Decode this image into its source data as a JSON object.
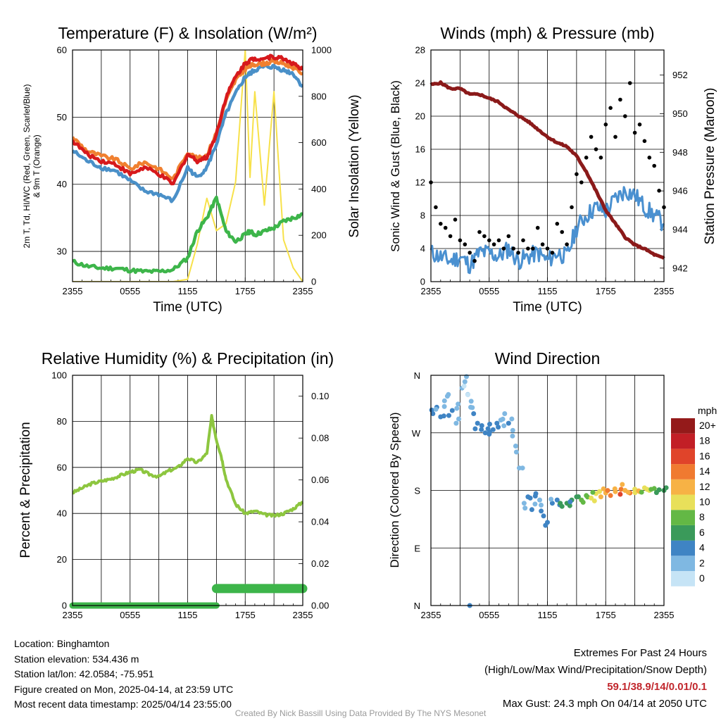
{
  "info": {
    "location": "Location: Binghamton",
    "elevation": "Station elevation: 534.436 m",
    "latlon": "Station lat/lon: 42.0584; -75.951",
    "created": "Figure created on Mon, 2025-04-14, at 23:59 UTC",
    "latest": "Most recent data timestamp: 2025/04/14 23:55:00"
  },
  "extremes": {
    "title": "Extremes For Past 24 Hours",
    "subtitle": "(High/Low/Max Wind/Precipitation/Snow Depth)",
    "values": "59.1/38.9/14/0.01/0.1",
    "max_gust": "Max Gust: 24.3 mph On 04/14 at 2050 UTC"
  },
  "credit": "Created By Nick Bassill Using Data Provided By The NYS Mesonet",
  "colors": {
    "temp": "#d7191c",
    "heat_index": "#e8a23a",
    "dewpoint": "#4a90c8",
    "temp9m": "#f08030",
    "solar": "#f7e14a",
    "wind": "#4a90d0",
    "gust": "#000000",
    "pressure": "#8b1a1a",
    "rh": "#8dc63f",
    "precip": "#3db54a"
  },
  "chart_data": [
    {
      "type": "line",
      "title": "Temperature (F) & Insolation (W/m²)",
      "xlabel": "Time (UTC)",
      "ylabel": [
        "2m T, Td, HI/WC (Red, Green, Scarlet/Blue)",
        "& 9m T (Orange)"
      ],
      "ylabel_right": "Solar Insolation (Yellow)",
      "x_ticks": [
        "2355",
        "0555",
        "1155",
        "1755",
        "2355"
      ],
      "x": [
        0,
        1.5,
        3,
        4.5,
        6,
        7.5,
        9,
        10.5,
        12,
        13,
        14,
        15,
        16,
        17,
        18,
        18.5,
        19,
        20,
        21,
        22,
        23,
        24
      ],
      "ylim": [
        25.5,
        60
      ],
      "yticks": [
        30,
        40,
        50,
        60
      ],
      "ylim_right": [
        0,
        1000
      ],
      "yticks_right": [
        0,
        200,
        400,
        600,
        800,
        1000
      ],
      "series": [
        {
          "name": "2m T",
          "axis": "left",
          "color": "temp",
          "values": [
            46.5,
            44.5,
            43.5,
            43,
            41.5,
            42.5,
            41.5,
            40,
            44.5,
            43.5,
            44,
            47.5,
            53,
            56,
            58,
            58.5,
            58.7,
            58.8,
            59,
            58.7,
            58,
            57
          ]
        },
        {
          "name": "9m T",
          "axis": "left",
          "color": "temp9m",
          "values": [
            47,
            45,
            44.2,
            43.7,
            42.3,
            43.3,
            42.3,
            40.8,
            44.8,
            43.8,
            44.3,
            47.7,
            52.5,
            55.5,
            57.2,
            57.6,
            57.9,
            58,
            58.3,
            58,
            57.4,
            56.5
          ]
        },
        {
          "name": "HI/WC",
          "axis": "left",
          "color": "dewpoint",
          "values": [
            45,
            43.5,
            42.5,
            42,
            40.5,
            39,
            38.5,
            37.5,
            42.5,
            41,
            42.5,
            46,
            50.5,
            53.5,
            56,
            56.5,
            57,
            57.5,
            57.5,
            57,
            56.5,
            54.5
          ]
        },
        {
          "name": "2m Td",
          "axis": "left",
          "color": "precip",
          "values": [
            28.5,
            27.8,
            27.5,
            27.5,
            27.2,
            27,
            27,
            27.3,
            29,
            33,
            35,
            38,
            33,
            31.5,
            32.5,
            33,
            32.5,
            33,
            33.5,
            34.5,
            35,
            35.5
          ]
        },
        {
          "name": "Solar",
          "axis": "right",
          "color": "solar",
          "values": [
            0,
            0,
            0,
            0,
            0,
            0,
            0,
            0,
            10,
            160,
            360,
            220,
            250,
            430,
            1000,
            450,
            820,
            330,
            820,
            180,
            60,
            0
          ]
        }
      ]
    },
    {
      "type": "line",
      "title": "Winds (mph) & Pressure (mb)",
      "xlabel": "Time (UTC)",
      "ylabel": "Sonic Wind & Gust (Blue, Black)",
      "ylabel_right": "Station Pressure (Maroon)",
      "x_ticks": [
        "2355",
        "0555",
        "1155",
        "1755",
        "2355"
      ],
      "ylim": [
        0,
        28
      ],
      "yticks": [
        0,
        4,
        8,
        12,
        16,
        20,
        24,
        28
      ],
      "ylim_right": [
        941.3,
        953.3
      ],
      "yticks_right": [
        942,
        944,
        946,
        948,
        950,
        952
      ],
      "series": [
        {
          "name": "Pressure",
          "axis": "right",
          "color": "pressure",
          "x": [
            0,
            1,
            2,
            3,
            4,
            5,
            6,
            7,
            8,
            9,
            10,
            11,
            12,
            13,
            14,
            15,
            16,
            17,
            18,
            19,
            20,
            21,
            22,
            23,
            24
          ],
          "values": [
            951.5,
            951.6,
            951.3,
            951.3,
            951.0,
            951.0,
            950.8,
            950.6,
            950.2,
            949.9,
            949.6,
            949.2,
            948.8,
            948.5,
            948.3,
            947.8,
            947.0,
            946.0,
            945.0,
            944.3,
            943.6,
            943.2,
            943.0,
            942.7,
            942.5
          ]
        },
        {
          "name": "Sonic Wind",
          "axis": "left",
          "color": "wind",
          "x": [
            0,
            1,
            2,
            3,
            4,
            5,
            6,
            7,
            8,
            9,
            10,
            11,
            12,
            13,
            14,
            15,
            16,
            17,
            18,
            19,
            20,
            21,
            22,
            23,
            24
          ],
          "values": [
            3.5,
            3.0,
            2.5,
            3.0,
            2.0,
            3.5,
            3.5,
            3.0,
            4.0,
            2.5,
            3.0,
            3.5,
            2.5,
            3.5,
            3.0,
            6.5,
            8.0,
            9.0,
            8.5,
            10.0,
            11.0,
            10.5,
            9.0,
            8.0,
            7.0
          ]
        },
        {
          "name": "Gust",
          "axis": "left",
          "color": "gust",
          "x": [
            0,
            0.5,
            1,
            1.5,
            2,
            2.5,
            3,
            3.5,
            4,
            4.5,
            5,
            5.5,
            6,
            6.5,
            7,
            7.5,
            8,
            8.5,
            9,
            9.5,
            10,
            10.5,
            11,
            11.5,
            12,
            12.5,
            13,
            13.5,
            14,
            14.5,
            15,
            15.5,
            16,
            16.5,
            17,
            17.5,
            18,
            18.5,
            19,
            19.5,
            20,
            20.5,
            21,
            21.5,
            22,
            22.5,
            23,
            23.5,
            24
          ],
          "values": [
            12,
            9,
            7,
            6.5,
            5.5,
            7.5,
            5,
            4.5,
            3.5,
            2.5,
            6,
            5.5,
            5,
            4.5,
            5,
            4,
            5.5,
            4,
            3.5,
            5,
            4,
            4,
            6.5,
            4.5,
            4,
            3.5,
            7,
            6,
            4.5,
            9,
            13,
            12,
            15,
            17.5,
            16,
            15,
            19,
            21,
            17.5,
            22,
            20,
            24,
            18,
            19,
            17,
            15,
            14,
            11,
            9
          ]
        }
      ]
    },
    {
      "type": "line",
      "title": "Relative Humidity (%) & Precipitation (in)",
      "ylabel": "Percent & Precipitation",
      "x_ticks": [
        "2355",
        "0555",
        "1155",
        "1755",
        "2355"
      ],
      "ylim": [
        0,
        100
      ],
      "yticks": [
        0,
        20,
        40,
        60,
        80,
        100
      ],
      "ylim_right": [
        0,
        0.11
      ],
      "yticks_right": [
        0.0,
        0.02,
        0.04,
        0.06,
        0.08,
        0.1
      ],
      "series": [
        {
          "name": "RH",
          "axis": "left",
          "color": "rh",
          "x": [
            0,
            1,
            2,
            3,
            4,
            5,
            6,
            7,
            8,
            9,
            10,
            11,
            12,
            13,
            14,
            14.5,
            15,
            15.5,
            16,
            17,
            18,
            19,
            20,
            21,
            22,
            23,
            24
          ],
          "values": [
            49,
            51,
            53,
            54,
            55,
            56.5,
            58,
            59,
            57,
            56,
            58.5,
            60,
            64,
            62,
            66,
            82,
            72,
            65,
            55,
            44,
            40,
            41,
            39.5,
            39,
            40,
            42,
            45
          ]
        },
        {
          "name": "Precipitation",
          "axis": "right",
          "color": "precip",
          "x": [
            0,
            15,
            15,
            24
          ],
          "values": [
            0.0,
            0.0,
            0.0081,
            0.0081
          ]
        }
      ]
    },
    {
      "type": "scatter",
      "title": "Wind Direction",
      "ylabel": "Direction (Colored By Speed)",
      "x_ticks": [
        "2355",
        "0555",
        "1155",
        "1755",
        "2355"
      ],
      "y_ticks": [
        "N",
        "E",
        "S",
        "W",
        "N"
      ],
      "ylim": [
        0,
        360
      ],
      "legend_title": "mph",
      "legend_labels": [
        "0",
        "2",
        "4",
        "6",
        "8",
        "10",
        "12",
        "14",
        "16",
        "18",
        "20+"
      ],
      "legend_colors": [
        "#c6e4f6",
        "#7fb8e2",
        "#3f84c4",
        "#3a9a5a",
        "#63b845",
        "#e8e05a",
        "#f7b245",
        "#f07a30",
        "#e0442a",
        "#c21f26",
        "#941a1a"
      ],
      "points": [
        {
          "x": 0.2,
          "y": 300,
          "s": 4
        },
        {
          "x": 0.6,
          "y": 310,
          "s": 3
        },
        {
          "x": 1.0,
          "y": 295,
          "s": 4
        },
        {
          "x": 1.4,
          "y": 320,
          "s": 2
        },
        {
          "x": 1.8,
          "y": 330,
          "s": 2
        },
        {
          "x": 2.2,
          "y": 305,
          "s": 3
        },
        {
          "x": 2.6,
          "y": 285,
          "s": 2
        },
        {
          "x": 2.8,
          "y": 315,
          "s": 1
        },
        {
          "x": 3.2,
          "y": 340,
          "s": 1
        },
        {
          "x": 3.5,
          "y": 350,
          "s": 2
        },
        {
          "x": 3.8,
          "y": 330,
          "s": 1
        },
        {
          "x": 4.1,
          "y": 310,
          "s": 2
        },
        {
          "x": 4.4,
          "y": 300,
          "s": 3
        },
        {
          "x": 4.8,
          "y": 285,
          "s": 4
        },
        {
          "x": 5.2,
          "y": 275,
          "s": 4
        },
        {
          "x": 5.6,
          "y": 270,
          "s": 4
        },
        {
          "x": 6.0,
          "y": 268,
          "s": 4
        },
        {
          "x": 6.4,
          "y": 275,
          "s": 3
        },
        {
          "x": 6.8,
          "y": 285,
          "s": 3
        },
        {
          "x": 7.2,
          "y": 290,
          "s": 2
        },
        {
          "x": 7.6,
          "y": 300,
          "s": 2
        },
        {
          "x": 8.0,
          "y": 285,
          "s": 3
        },
        {
          "x": 8.4,
          "y": 265,
          "s": 2
        },
        {
          "x": 8.8,
          "y": 240,
          "s": 2
        },
        {
          "x": 9.1,
          "y": 215,
          "s": 1
        },
        {
          "x": 9.6,
          "y": 160,
          "s": 2
        },
        {
          "x": 10.0,
          "y": 170,
          "s": 4
        },
        {
          "x": 10.4,
          "y": 150,
          "s": 3
        },
        {
          "x": 10.8,
          "y": 175,
          "s": 4
        },
        {
          "x": 11.2,
          "y": 165,
          "s": 2
        },
        {
          "x": 11.6,
          "y": 140,
          "s": 3
        },
        {
          "x": 12.0,
          "y": 130,
          "s": 4
        },
        {
          "x": 12.5,
          "y": 160,
          "s": 3
        },
        {
          "x": 13.0,
          "y": 165,
          "s": 4
        },
        {
          "x": 13.5,
          "y": 155,
          "s": 5
        },
        {
          "x": 14.0,
          "y": 160,
          "s": 6
        },
        {
          "x": 14.5,
          "y": 165,
          "s": 5
        },
        {
          "x": 15.0,
          "y": 170,
          "s": 6
        },
        {
          "x": 15.5,
          "y": 165,
          "s": 7
        },
        {
          "x": 16.0,
          "y": 172,
          "s": 8
        },
        {
          "x": 16.5,
          "y": 168,
          "s": 10
        },
        {
          "x": 17.0,
          "y": 175,
          "s": 9
        },
        {
          "x": 17.5,
          "y": 170,
          "s": 11
        },
        {
          "x": 18.0,
          "y": 176,
          "s": 12
        },
        {
          "x": 18.5,
          "y": 172,
          "s": 14
        },
        {
          "x": 19.0,
          "y": 178,
          "s": 12
        },
        {
          "x": 19.5,
          "y": 174,
          "s": 15
        },
        {
          "x": 20.0,
          "y": 180,
          "s": 11
        },
        {
          "x": 20.5,
          "y": 176,
          "s": 13
        },
        {
          "x": 21.0,
          "y": 182,
          "s": 10
        },
        {
          "x": 21.5,
          "y": 178,
          "s": 12
        },
        {
          "x": 22.0,
          "y": 184,
          "s": 9
        },
        {
          "x": 22.5,
          "y": 180,
          "s": 10
        },
        {
          "x": 23.0,
          "y": 183,
          "s": 7
        },
        {
          "x": 23.5,
          "y": 181,
          "s": 6
        },
        {
          "x": 24.0,
          "y": 180,
          "s": 5
        },
        {
          "x": 4.0,
          "y": 0,
          "s": 3
        }
      ]
    }
  ]
}
